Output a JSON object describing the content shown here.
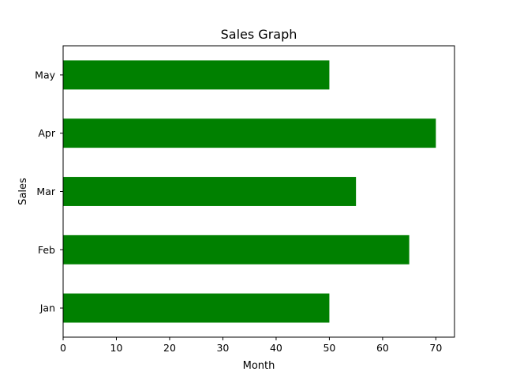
{
  "chart_data": {
    "type": "bar",
    "orientation": "horizontal",
    "title": "Sales Graph",
    "xlabel": "Month",
    "ylabel": "Sales",
    "categories": [
      "Jan",
      "Feb",
      "Mar",
      "Apr",
      "May"
    ],
    "values": [
      50,
      65,
      55,
      70,
      50
    ],
    "xlim": [
      0,
      73.5
    ],
    "xticks": [
      0,
      10,
      20,
      30,
      40,
      50,
      60,
      70
    ],
    "grid": false,
    "legend": "none",
    "bar_color": "#008000"
  }
}
